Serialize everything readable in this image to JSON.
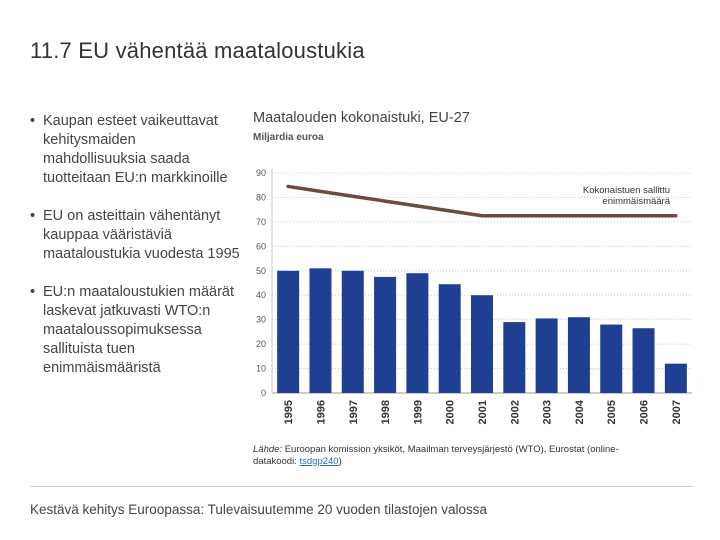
{
  "slide": {
    "title": "11.7 EU vähentää maataloustukia",
    "bullets": [
      "Kaupan esteet vaikeuttavat kehitysmaiden mahdollisuuksia saada tuotteitaan EU:n markkinoille",
      "EU on asteittain vähentänyt kauppaa vääristäviä maataloustukia vuodesta 1995",
      "EU:n maataloustukien määrät laskevat jatkuvasti WTO:n maataloussopimuksessa sallituista tuen enimmäismääristä"
    ],
    "bullet_symbol": "•",
    "source_label": "Lähde:",
    "source_text": " Euroopan komission yksiköt, Maailman terveysjärjestö (WTO), Eurostat (online-datakoodi: ",
    "source_code": "tsdgp240",
    "source_end": ")",
    "footer": "Kestävä kehitys Euroopassa: Tulevaisuutemme 20 vuoden tilastojen valossa"
  },
  "chart_data": {
    "type": "bar",
    "title": "Maatalouden kokonaistuki, EU-27",
    "ylabel": "Miljardia euroa",
    "ylim": [
      0,
      90
    ],
    "yticks": [
      0,
      10,
      20,
      30,
      40,
      50,
      60,
      70,
      80,
      90
    ],
    "categories": [
      "1995",
      "1996",
      "1997",
      "1998",
      "1999",
      "2000",
      "2001",
      "2002",
      "2003",
      "2004",
      "2005",
      "2006",
      "2007"
    ],
    "values": [
      50,
      51,
      50,
      47.5,
      49,
      44.5,
      40,
      29,
      30.5,
      31,
      28,
      26.5,
      12
    ],
    "bar_color": "#1f3f93",
    "line": {
      "name": "Kokonaistuen sallittu enimmäismäärä",
      "label_lines": [
        "Kokonaistuen sallittu",
        "enimmäismäärä"
      ],
      "values": [
        84.5,
        82.5,
        80.5,
        78.5,
        76.5,
        74.5,
        72.5,
        72.5,
        72.5,
        72.5,
        72.5,
        72.5,
        72.5
      ],
      "color": "#6b4a3f"
    }
  }
}
